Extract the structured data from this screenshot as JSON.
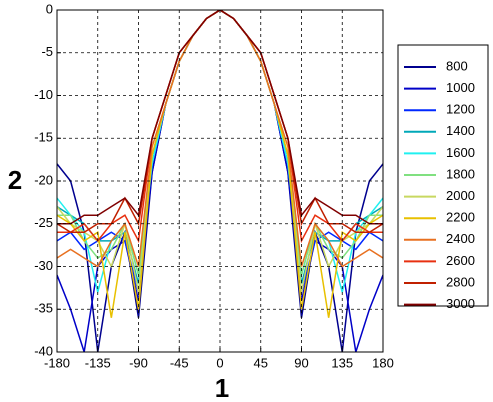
{
  "chart_data": {
    "type": "line",
    "x_label": "1",
    "y_label": "2",
    "x": [
      -180,
      -165,
      -150,
      -135,
      -120,
      -105,
      -90,
      -75,
      -60,
      -45,
      -30,
      -15,
      0,
      15,
      30,
      45,
      60,
      75,
      90,
      105,
      120,
      135,
      150,
      165,
      180
    ],
    "xlim": [
      -180,
      180
    ],
    "xticks": [
      -180,
      -135,
      -90,
      -45,
      0,
      45,
      90,
      135,
      180
    ],
    "ylim": [
      -40,
      0
    ],
    "yticks": [
      0,
      -5,
      -10,
      -15,
      -20,
      -25,
      -30,
      -35,
      -40
    ],
    "grid": true,
    "legend": "right",
    "series": [
      {
        "name": "800",
        "color": "#00008f",
        "values": [
          -18,
          -20,
          -26,
          -40,
          -30,
          -26,
          -36,
          -19,
          -11,
          -6,
          -3,
          -1,
          0,
          -1,
          -3,
          -6,
          -11,
          -19,
          -36,
          -26,
          -30,
          -40,
          -26,
          -20,
          -18
        ]
      },
      {
        "name": "1000",
        "color": "#0000c8",
        "values": [
          -31,
          -35,
          -40,
          -30,
          -28,
          -27,
          -34,
          -19,
          -11,
          -6,
          -3,
          -1,
          0,
          -1,
          -3,
          -6,
          -11,
          -19,
          -34,
          -27,
          -28,
          -30,
          -40,
          -35,
          -31
        ]
      },
      {
        "name": "1200",
        "color": "#0028ff",
        "values": [
          -27,
          -26,
          -28,
          -27,
          -26,
          -27,
          -33,
          -18,
          -11,
          -6,
          -3,
          -1,
          0,
          -1,
          -3,
          -6,
          -11,
          -18,
          -33,
          -27,
          -26,
          -27,
          -28,
          -26,
          -27
        ]
      },
      {
        "name": "1400",
        "color": "#00a8b8",
        "values": [
          -23,
          -24,
          -25,
          -27,
          -27,
          -26,
          -32,
          -18,
          -11,
          -6,
          -3,
          -1,
          0,
          -1,
          -3,
          -6,
          -11,
          -18,
          -32,
          -26,
          -27,
          -27,
          -25,
          -24,
          -23
        ]
      },
      {
        "name": "1600",
        "color": "#20f0f0",
        "values": [
          -22,
          -24,
          -26,
          -33,
          -27,
          -25,
          -31,
          -18,
          -11,
          -6,
          -3,
          -1,
          0,
          -1,
          -3,
          -6,
          -11,
          -18,
          -31,
          -25,
          -27,
          -33,
          -26,
          -24,
          -22
        ]
      },
      {
        "name": "1800",
        "color": "#80e080",
        "values": [
          -24,
          -24,
          -27,
          -29,
          -28,
          -25,
          -31,
          -17,
          -11,
          -6,
          -3,
          -1,
          0,
          -1,
          -3,
          -6,
          -11,
          -17,
          -31,
          -25,
          -28,
          -29,
          -27,
          -24,
          -24
        ]
      },
      {
        "name": "2000",
        "color": "#c8d860",
        "values": [
          -23,
          -25,
          -26,
          -27,
          -30,
          -25,
          -33,
          -17,
          -11,
          -6,
          -3,
          -1,
          0,
          -1,
          -3,
          -6,
          -11,
          -17,
          -33,
          -25,
          -30,
          -27,
          -26,
          -25,
          -23
        ]
      },
      {
        "name": "2200",
        "color": "#e8c000",
        "values": [
          -24,
          -25,
          -27,
          -26,
          -36,
          -26,
          -35,
          -17,
          -11,
          -6,
          -3,
          -1,
          0,
          -1,
          -3,
          -6,
          -11,
          -17,
          -35,
          -26,
          -36,
          -26,
          -27,
          -25,
          -24
        ]
      },
      {
        "name": "2400",
        "color": "#e87020",
        "values": [
          -29,
          -28,
          -29,
          -30,
          -27,
          -25,
          -30,
          -16,
          -11,
          -6,
          -3,
          -1,
          0,
          -1,
          -3,
          -6,
          -11,
          -16,
          -30,
          -25,
          -27,
          -30,
          -29,
          -28,
          -29
        ]
      },
      {
        "name": "2600",
        "color": "#e83010",
        "values": [
          -26,
          -26,
          -25,
          -27,
          -25,
          -24,
          -27,
          -15,
          -10,
          -5,
          -3,
          -1,
          0,
          -1,
          -3,
          -5,
          -10,
          -15,
          -27,
          -24,
          -25,
          -27,
          -25,
          -26,
          -26
        ]
      },
      {
        "name": "2800",
        "color": "#c02000",
        "values": [
          -25,
          -26,
          -26,
          -25,
          -25,
          -22,
          -25,
          -15,
          -10,
          -5,
          -3,
          -1,
          0,
          -1,
          -3,
          -5,
          -10,
          -15,
          -25,
          -22,
          -25,
          -25,
          -26,
          -26,
          -25
        ]
      },
      {
        "name": "3000",
        "color": "#800000",
        "values": [
          -25,
          -25,
          -24,
          -24,
          -23,
          -22,
          -24,
          -15,
          -10,
          -5,
          -3,
          -1,
          0,
          -1,
          -3,
          -5,
          -10,
          -15,
          -24,
          -22,
          -23,
          -24,
          -24,
          -25,
          -25
        ]
      }
    ]
  }
}
